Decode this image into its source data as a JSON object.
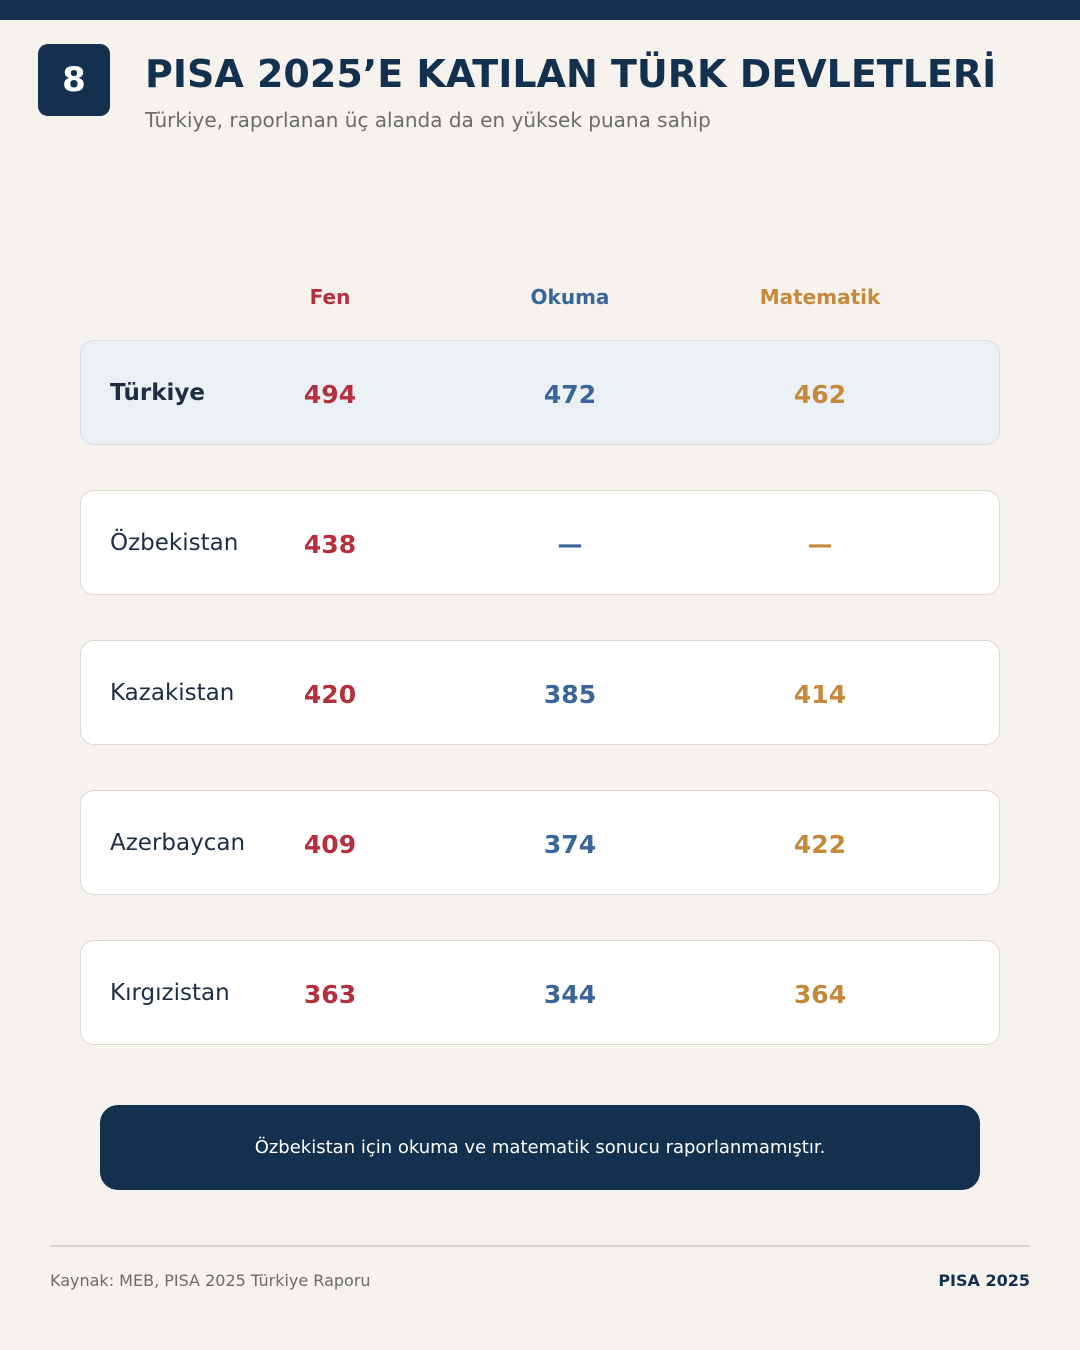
{
  "badge": "8",
  "header": {
    "title": "PISA 2025’E KATILAN TÜRK DEVLETLERİ",
    "subtitle": "Türkiye, raporlanan üç alanda da en yüksek puana sahip"
  },
  "table": {
    "columns": [
      "Fen",
      "Okuma",
      "Matematik"
    ],
    "rows": [
      [
        "Türkiye",
        "494",
        "472",
        "462"
      ],
      [
        "Özbekistan",
        "438",
        "—",
        "—"
      ],
      [
        "Kazakistan",
        "420",
        "385",
        "414"
      ],
      [
        "Azerbaycan",
        "409",
        "374",
        "422"
      ],
      [
        "Kırgızistan",
        "363",
        "344",
        "364"
      ]
    ]
  },
  "note": "Özbekistan için okuma ve matematik sonucu raporlanmamıştır.",
  "footer": {
    "source": "Kaynak: MEB, PISA 2025 Türkiye Raporu",
    "brand": "PISA 2025"
  }
}
